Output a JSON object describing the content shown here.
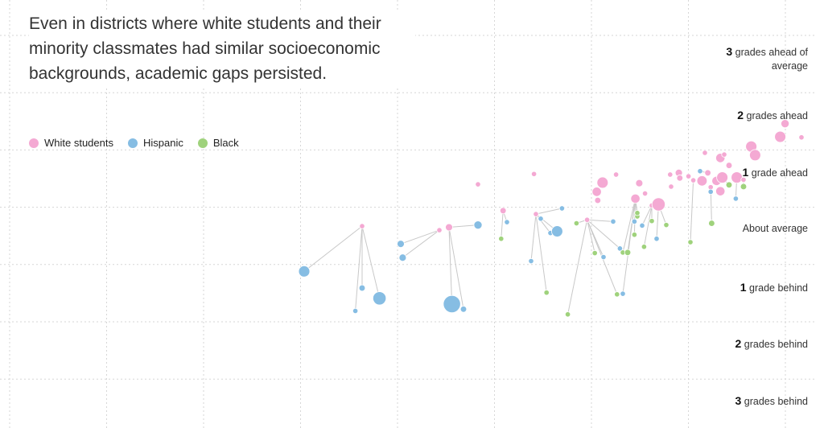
{
  "headline": "Even in districts where white students and their minority classmates had similar socioeconomic backgrounds, academic gaps persisted.",
  "legend": [
    {
      "label": "White students",
      "color": "#f4a9d3"
    },
    {
      "label": "Hispanic",
      "color": "#86bde3"
    },
    {
      "label": "Black",
      "color": "#9fd27c"
    }
  ],
  "y_labels": [
    {
      "num": "3",
      "text": "grades ahead of average"
    },
    {
      "num": "2",
      "text": "grades ahead"
    },
    {
      "num": "1",
      "text": "grade ahead"
    },
    {
      "num": "",
      "text": "About average"
    },
    {
      "num": "1",
      "text": "grade behind"
    },
    {
      "num": "2",
      "text": "grades behind"
    },
    {
      "num": "3",
      "text": "grades behind"
    }
  ],
  "chart_data": {
    "type": "scatter",
    "title": "Even in districts where white students and their minority classmates had similar socioeconomic backgrounds, academic gaps persisted.",
    "ylabel": "",
    "ylim": [
      -3,
      3.5
    ],
    "grid": true,
    "legend_position": "top-left",
    "colors": {
      "white": "#f4a9d3",
      "hispanic": "#86bde3",
      "black": "#9fd27c"
    },
    "series": [
      {
        "name": "White students",
        "points": [
          [
            37.5,
            -0.33,
            2
          ],
          [
            45.5,
            -0.4,
            2
          ],
          [
            46.5,
            -0.35,
            4
          ],
          [
            49.5,
            0.4,
            2
          ],
          [
            52.1,
            -0.06,
            3
          ],
          [
            55.3,
            0.58,
            2
          ],
          [
            55.5,
            -0.12,
            2
          ],
          [
            60.8,
            -0.22,
            2
          ],
          [
            61.8,
            0.27,
            6
          ],
          [
            61.9,
            0.12,
            3
          ],
          [
            62.4,
            0.43,
            8
          ],
          [
            63.8,
            0.57,
            2
          ],
          [
            65.8,
            0.15,
            6
          ],
          [
            66.2,
            0.42,
            4
          ],
          [
            66.8,
            0.24,
            2
          ],
          [
            67.5,
            0.03,
            2
          ],
          [
            68.2,
            0.05,
            10
          ],
          [
            69.4,
            0.57,
            2
          ],
          [
            69.5,
            0.36,
            2
          ],
          [
            70.3,
            0.6,
            4
          ],
          [
            70.4,
            0.51,
            3
          ],
          [
            71.3,
            0.54,
            2
          ],
          [
            71.8,
            0.47,
            2
          ],
          [
            72.7,
            0.46,
            7
          ],
          [
            73.0,
            0.95,
            2
          ],
          [
            73.3,
            0.6,
            3
          ],
          [
            73.6,
            0.35,
            2
          ],
          [
            74.2,
            0.46,
            6
          ],
          [
            74.6,
            0.28,
            6
          ],
          [
            74.6,
            0.86,
            6
          ],
          [
            74.8,
            0.52,
            8
          ],
          [
            75.0,
            0.92,
            2
          ],
          [
            75.5,
            0.73,
            3
          ],
          [
            76.3,
            0.52,
            8
          ],
          [
            77.0,
            0.48,
            2
          ],
          [
            77.8,
            1.06,
            8
          ],
          [
            78.2,
            0.91,
            8
          ],
          [
            80.8,
            1.23,
            8
          ],
          [
            81.3,
            1.46,
            5
          ],
          [
            83.0,
            1.22,
            2
          ]
        ]
      },
      {
        "name": "Hispanic",
        "points": [
          [
            31.5,
            -1.12,
            8
          ],
          [
            36.8,
            -1.81,
            2
          ],
          [
            37.5,
            -1.41,
            3
          ],
          [
            39.3,
            -1.59,
            10
          ],
          [
            41.5,
            -0.64,
            4
          ],
          [
            41.7,
            -0.88,
            4
          ],
          [
            46.8,
            -1.69,
            14
          ],
          [
            48.0,
            -1.78,
            3
          ],
          [
            49.5,
            -0.31,
            5
          ],
          [
            52.5,
            -0.26,
            2
          ],
          [
            55.0,
            -0.94,
            2
          ],
          [
            56.0,
            -0.2,
            2
          ],
          [
            57.0,
            -0.45,
            2
          ],
          [
            57.7,
            -0.42,
            8
          ],
          [
            58.2,
            -0.02,
            2
          ],
          [
            62.5,
            -0.87,
            2
          ],
          [
            63.5,
            -0.25,
            2
          ],
          [
            64.2,
            -0.72,
            2
          ],
          [
            64.5,
            -1.51,
            2
          ],
          [
            65.7,
            -0.25,
            2
          ],
          [
            66.5,
            -0.32,
            2
          ],
          [
            68.0,
            -0.55,
            2
          ],
          [
            72.5,
            0.63,
            2
          ],
          [
            73.6,
            0.27,
            2
          ],
          [
            76.2,
            0.15,
            2
          ]
        ]
      },
      {
        "name": "Black",
        "points": [
          [
            51.9,
            -0.55,
            2
          ],
          [
            56.6,
            -1.49,
            2
          ],
          [
            58.8,
            -1.87,
            2
          ],
          [
            59.7,
            -0.28,
            2
          ],
          [
            61.6,
            -0.8,
            2
          ],
          [
            63.9,
            -1.52,
            2
          ],
          [
            64.5,
            -0.79,
            2
          ],
          [
            65.0,
            -0.79,
            3
          ],
          [
            65.7,
            -0.48,
            2
          ],
          [
            66.0,
            -0.16,
            2
          ],
          [
            66.0,
            -0.1,
            2
          ],
          [
            66.7,
            -0.69,
            2
          ],
          [
            67.5,
            -0.24,
            2
          ],
          [
            69.0,
            -0.31,
            2
          ],
          [
            71.5,
            -0.61,
            2
          ],
          [
            73.7,
            -0.28,
            3
          ],
          [
            75.5,
            0.39,
            3
          ],
          [
            77.0,
            0.36,
            3
          ]
        ]
      }
    ]
  }
}
